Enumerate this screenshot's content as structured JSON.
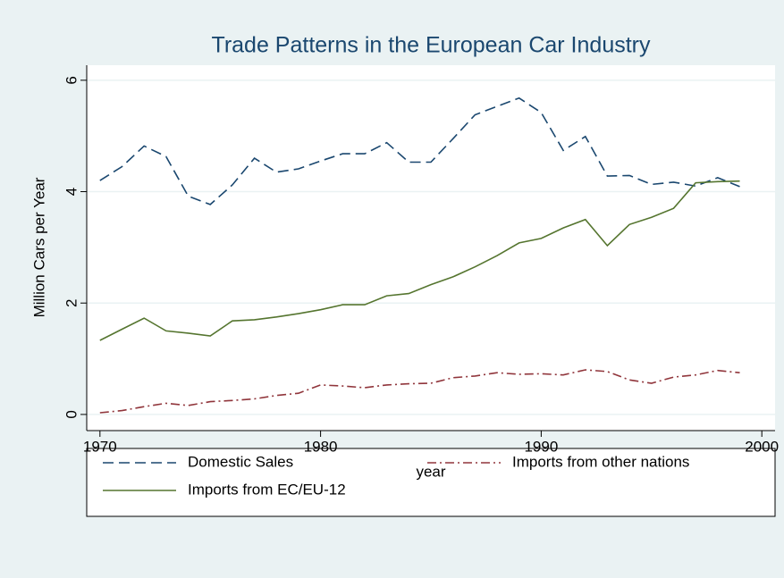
{
  "chart_data": {
    "type": "line",
    "title": "Trade Patterns in the European Car Industry",
    "xlabel": "year",
    "ylabel": "Million Cars per Year",
    "x": [
      1970,
      1971,
      1972,
      1973,
      1974,
      1975,
      1976,
      1977,
      1978,
      1979,
      1980,
      1981,
      1982,
      1983,
      1984,
      1985,
      1986,
      1987,
      1988,
      1989,
      1990,
      1991,
      1992,
      1993,
      1994,
      1995,
      1996,
      1997,
      1998,
      1999
    ],
    "series": [
      {
        "name": "Domestic Sales",
        "color": "#1a476f",
        "dash": "dashed",
        "values": [
          4.2,
          4.45,
          4.82,
          4.63,
          3.92,
          3.77,
          4.12,
          4.6,
          4.35,
          4.41,
          4.55,
          4.68,
          4.68,
          4.88,
          4.53,
          4.53,
          4.95,
          5.38,
          5.53,
          5.68,
          5.42,
          4.74,
          4.99,
          4.28,
          4.29,
          4.13,
          4.17,
          4.1,
          4.25,
          4.09
        ]
      },
      {
        "name": "Imports from other nations",
        "color": "#90353b",
        "dash": "dashdot",
        "values": [
          0.03,
          0.07,
          0.14,
          0.2,
          0.16,
          0.23,
          0.25,
          0.28,
          0.34,
          0.38,
          0.53,
          0.51,
          0.48,
          0.53,
          0.55,
          0.56,
          0.66,
          0.69,
          0.75,
          0.72,
          0.73,
          0.71,
          0.8,
          0.77,
          0.62,
          0.56,
          0.67,
          0.71,
          0.79,
          0.75
        ]
      },
      {
        "name": "Imports from EC/EU-12",
        "color": "#55752f",
        "dash": "solid",
        "values": [
          1.33,
          1.53,
          1.73,
          1.5,
          1.46,
          1.41,
          1.68,
          1.7,
          1.75,
          1.81,
          1.88,
          1.97,
          1.97,
          2.13,
          2.17,
          2.33,
          2.47,
          2.65,
          2.85,
          3.08,
          3.16,
          3.35,
          3.5,
          3.03,
          3.41,
          3.54,
          3.7,
          4.16,
          4.18,
          4.19
        ]
      }
    ],
    "xlim": [
      1969.4,
      2000.6
    ],
    "xticks": [
      1970,
      1980,
      1990,
      2000
    ],
    "ylim": [
      -0.29,
      6.27
    ],
    "yticks": [
      0,
      2,
      4,
      6
    ],
    "grid": true,
    "legend": "bottom"
  }
}
